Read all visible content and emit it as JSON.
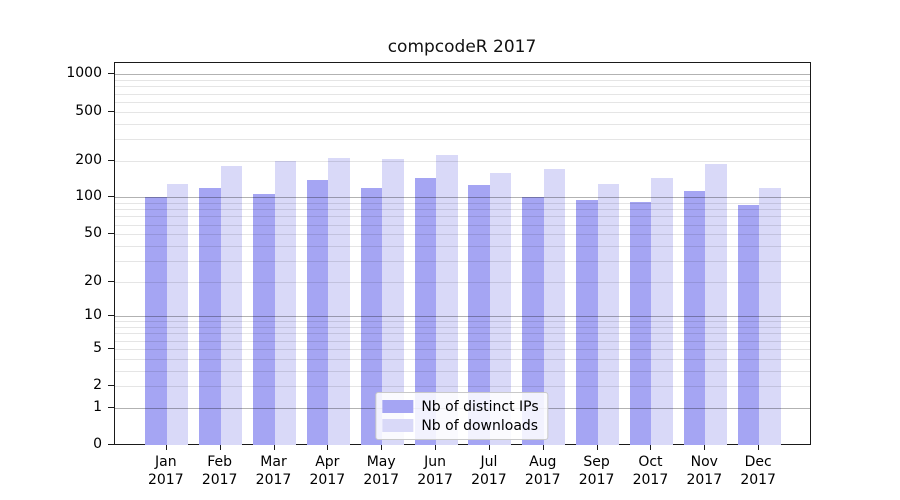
{
  "title": "compcodeR 2017",
  "chart_data": {
    "type": "bar",
    "title": "compcodeR 2017",
    "categories": [
      "Jan 2017",
      "Feb 2017",
      "Mar 2017",
      "Apr 2017",
      "May 2017",
      "Jun 2017",
      "Jul 2017",
      "Aug 2017",
      "Sep 2017",
      "Oct 2017",
      "Nov 2017",
      "Dec 2017"
    ],
    "series": [
      {
        "name": "Nb of distinct IPs",
        "color": "#a5a5f3",
        "values": [
          100,
          120,
          107,
          140,
          119,
          143,
          126,
          100,
          95,
          92,
          112,
          87
        ]
      },
      {
        "name": "Nb of downloads",
        "color": "#d9d9f8",
        "values": [
          130,
          182,
          198,
          209,
          206,
          222,
          158,
          170,
          130,
          145,
          186,
          119
        ]
      }
    ],
    "y_axis": {
      "scale": "log10(v+1)",
      "ticks": [
        0,
        1,
        2,
        5,
        10,
        20,
        50,
        100,
        200,
        500,
        1000
      ],
      "max_value": 1238
    },
    "x_axis": {
      "tick_labels_line1": [
        "Jan",
        "Feb",
        "Mar",
        "Apr",
        "May",
        "Jun",
        "Jul",
        "Aug",
        "Sep",
        "Oct",
        "Nov",
        "Dec"
      ],
      "tick_labels_line2": "2017"
    },
    "legend": {
      "position": "lower center"
    },
    "grid": {
      "major_color": "#b3b3b3",
      "minor_color": "#e3e3e3"
    },
    "background": "#ffffff"
  }
}
